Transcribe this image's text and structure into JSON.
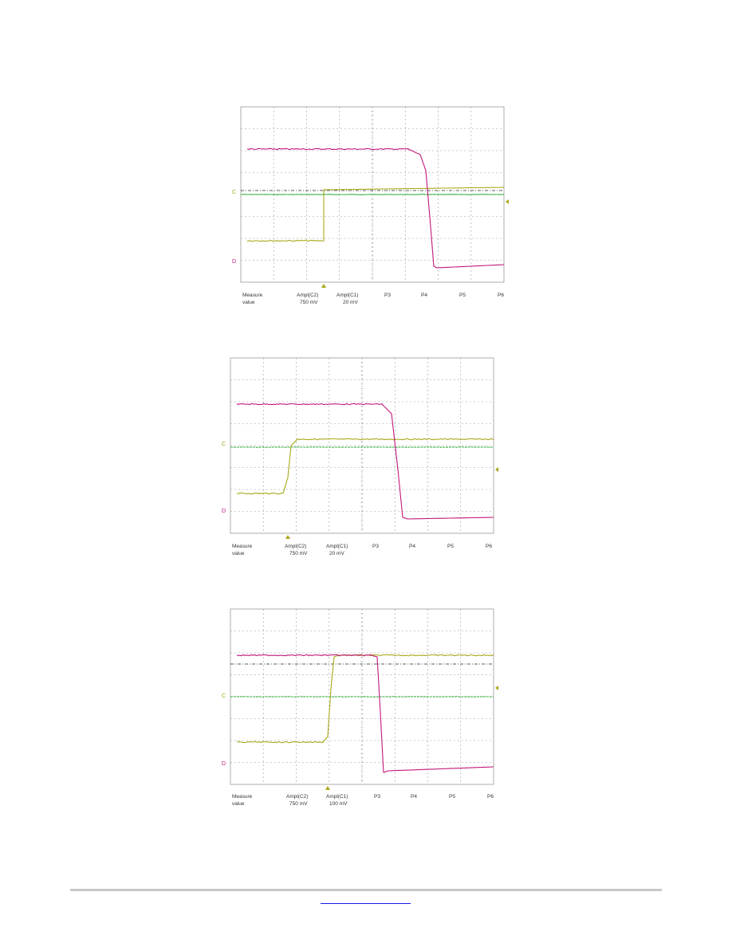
{
  "colors": {
    "ch_magenta": "#c2177a",
    "ch_yellow": "#a8a81a",
    "ch_green": "#3cb043",
    "grid": "#9a9a9a",
    "link": "#1a1aee"
  },
  "chart_data": [
    {
      "type": "line",
      "grid": true,
      "marker_labels": {
        "ch_c": "C",
        "ch_d": "D"
      },
      "measurements": {
        "row1": [
          "Measure",
          "Ampl(C2)",
          "Ampl(C1)",
          "P3",
          "P4",
          "P5",
          "P6"
        ],
        "row2": [
          "value",
          "750 mV",
          "20 mV"
        ]
      }
    },
    {
      "type": "line",
      "grid": true,
      "marker_labels": {
        "ch_c": "C",
        "ch_d": "D"
      },
      "measurements": {
        "row1": [
          "Measure",
          "Ampl(C2)",
          "Ampl(C1)",
          "P3",
          "P4",
          "P5",
          "P6"
        ],
        "row2": [
          "value",
          "750 mV",
          "20 mV"
        ]
      }
    },
    {
      "type": "line",
      "grid": true,
      "marker_labels": {
        "ch_c": "C",
        "ch_d": "D"
      },
      "measurements": {
        "row1": [
          "Measure",
          "Ampl(C2)",
          "Ampl(C1)",
          "P3",
          "P4",
          "P5",
          "P6"
        ],
        "row2": [
          "value",
          "750 mV",
          "100 mV"
        ]
      }
    }
  ]
}
